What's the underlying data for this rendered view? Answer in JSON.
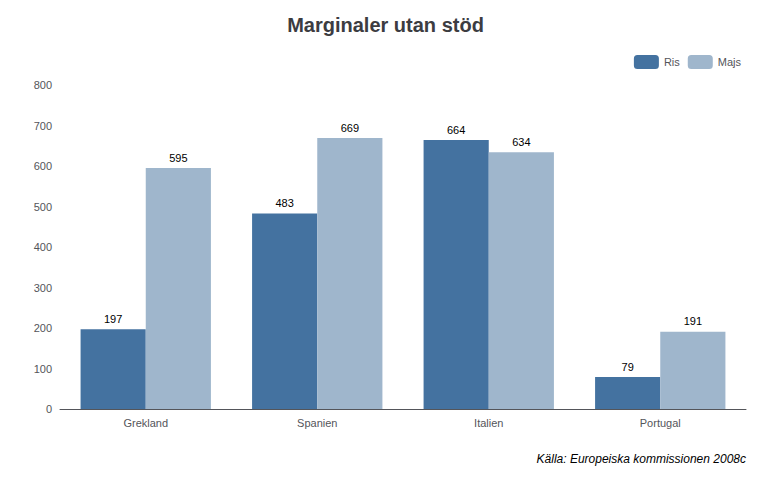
{
  "chart_data": {
    "type": "bar",
    "title": "Marginaler utan stöd",
    "categories": [
      "Grekland",
      "Spanien",
      "Italien",
      "Portugal"
    ],
    "series": [
      {
        "name": "Ris",
        "color": "#4472a0",
        "values": [
          197,
          483,
          664,
          79
        ]
      },
      {
        "name": "Majs",
        "color": "#9fb6cc",
        "values": [
          595,
          669,
          634,
          191
        ]
      }
    ],
    "ylim": [
      0,
      800
    ],
    "yticks": [
      0,
      100,
      200,
      300,
      400,
      500,
      600,
      700,
      800
    ],
    "grid": false,
    "legend": "upper right",
    "data_labels": true,
    "annotation": "Källa: Europeiska kommissionen 2008c"
  }
}
